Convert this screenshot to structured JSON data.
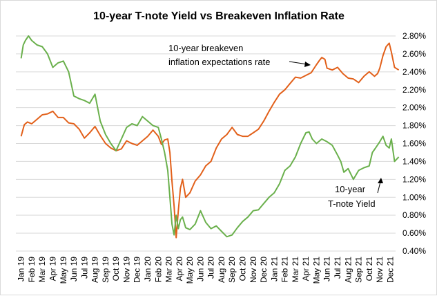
{
  "chart_data": {
    "type": "line",
    "title": "10-year T-note Yield vs Breakeven Inflation Rate",
    "xlabel": "",
    "ylabel": "",
    "ylim": [
      0.004,
      0.028
    ],
    "y_ticks": [
      "0.40%",
      "0.60%",
      "0.80%",
      "1.00%",
      "1.20%",
      "1.40%",
      "1.60%",
      "1.80%",
      "2.00%",
      "2.20%",
      "2.40%",
      "2.60%",
      "2.80%"
    ],
    "x_ticks": [
      "Jan 19",
      "Feb 19",
      "Mar 19",
      "Apr 19",
      "May 19",
      "Jun 19",
      "Jul 19",
      "Aug 19",
      "Sep 19",
      "Oct 19",
      "Nov 19",
      "Dec 19",
      "Jan 20",
      "Feb 20",
      "Mar 20",
      "Apr 20",
      "May 20",
      "Jun 20",
      "Jul 20",
      "Aug 20",
      "Sep 20",
      "Oct 20",
      "Nov 20",
      "Dec 20",
      "Jan 21",
      "Feb 21",
      "Mar 21",
      "Apr 21",
      "May 21",
      "Jun 21",
      "Jul 21",
      "Aug 21",
      "Sep 21",
      "Oct 21",
      "Nov 21",
      "Dec 21"
    ],
    "grid": true,
    "series": [
      {
        "label": "10-year breakeven inflation expectations rate",
        "color": "#e2601a",
        "x": [
          0,
          0.3,
          0.6,
          1,
          1.5,
          2,
          2.5,
          3,
          3.5,
          4,
          4.5,
          5,
          5.5,
          6,
          6.5,
          7,
          7.5,
          8,
          8.5,
          9,
          9.5,
          10,
          10.5,
          11,
          11.5,
          12,
          12.5,
          13,
          13.3,
          13.6,
          13.9,
          14.1,
          14.3,
          14.5,
          14.7,
          14.9,
          15.1,
          15.3,
          15.6,
          16,
          16.5,
          17,
          17.5,
          18,
          18.5,
          19,
          19.5,
          20,
          20.5,
          21,
          21.5,
          22,
          22.5,
          23,
          23.5,
          24,
          24.5,
          25,
          25.5,
          26,
          26.5,
          27,
          27.5,
          28,
          28.3,
          28.5,
          28.8,
          29,
          29.5,
          30,
          30.5,
          31,
          31.5,
          32,
          32.5,
          33,
          33.5,
          33.8,
          34,
          34.3,
          34.6,
          34.9,
          35.1,
          35.4,
          35.8
        ],
        "y": [
          0.0168,
          0.0181,
          0.0184,
          0.0182,
          0.0187,
          0.0192,
          0.0193,
          0.0196,
          0.0189,
          0.0189,
          0.0183,
          0.0182,
          0.0176,
          0.0166,
          0.0172,
          0.0179,
          0.0169,
          0.016,
          0.0155,
          0.0152,
          0.0154,
          0.0163,
          0.016,
          0.0158,
          0.0163,
          0.0168,
          0.0175,
          0.0168,
          0.0159,
          0.0164,
          0.0165,
          0.015,
          0.0118,
          0.009,
          0.0055,
          0.0085,
          0.011,
          0.012,
          0.01,
          0.0105,
          0.0118,
          0.0125,
          0.0135,
          0.014,
          0.0155,
          0.0165,
          0.017,
          0.0178,
          0.017,
          0.0168,
          0.0168,
          0.0172,
          0.0176,
          0.0185,
          0.0196,
          0.0206,
          0.0215,
          0.022,
          0.0227,
          0.0234,
          0.0233,
          0.0236,
          0.0239,
          0.0248,
          0.0253,
          0.0256,
          0.0254,
          0.0244,
          0.0242,
          0.0245,
          0.0238,
          0.0233,
          0.0232,
          0.0228,
          0.0235,
          0.024,
          0.0235,
          0.0238,
          0.0244,
          0.0258,
          0.0268,
          0.0272,
          0.0262,
          0.0245,
          0.0242
        ]
      },
      {
        "label": "10-year T-note Yield",
        "color": "#6ab04c",
        "x": [
          0,
          0.2,
          0.4,
          0.7,
          1,
          1.5,
          2,
          2.5,
          3,
          3.5,
          4,
          4.5,
          5,
          5.5,
          6,
          6.5,
          7,
          7.5,
          8,
          8.5,
          9,
          9.5,
          10,
          10.5,
          11,
          11.5,
          12,
          12.5,
          13,
          13.3,
          13.6,
          13.9,
          14.1,
          14.3,
          14.5,
          14.7,
          14.9,
          15.1,
          15.3,
          15.6,
          16,
          16.5,
          17,
          17.5,
          18,
          18.5,
          19,
          19.5,
          20,
          20.5,
          21,
          21.5,
          22,
          22.5,
          23,
          23.5,
          24,
          24.5,
          25,
          25.5,
          26,
          26.5,
          27,
          27.3,
          27.6,
          28,
          28.5,
          29,
          29.5,
          30,
          30.3,
          30.6,
          31,
          31.5,
          32,
          32.5,
          33,
          33.3,
          33.6,
          34,
          34.3,
          34.6,
          34.9,
          35.1,
          35.4,
          35.8
        ],
        "y": [
          0.0255,
          0.027,
          0.0275,
          0.028,
          0.0275,
          0.027,
          0.0268,
          0.026,
          0.0245,
          0.025,
          0.0252,
          0.024,
          0.0213,
          0.021,
          0.0208,
          0.0205,
          0.0215,
          0.0185,
          0.017,
          0.016,
          0.0152,
          0.0165,
          0.0178,
          0.0182,
          0.018,
          0.019,
          0.0185,
          0.018,
          0.0178,
          0.0165,
          0.015,
          0.013,
          0.01,
          0.007,
          0.0058,
          0.008,
          0.0065,
          0.0075,
          0.0078,
          0.0066,
          0.0064,
          0.007,
          0.0085,
          0.0072,
          0.0065,
          0.0068,
          0.0062,
          0.0056,
          0.0058,
          0.0066,
          0.0073,
          0.0078,
          0.0085,
          0.0086,
          0.0093,
          0.01,
          0.0105,
          0.0115,
          0.013,
          0.0135,
          0.0145,
          0.016,
          0.0172,
          0.0173,
          0.0165,
          0.016,
          0.0165,
          0.0162,
          0.0158,
          0.0147,
          0.014,
          0.0128,
          0.0132,
          0.012,
          0.013,
          0.0133,
          0.0135,
          0.015,
          0.0155,
          0.0162,
          0.0168,
          0.0158,
          0.0155,
          0.0165,
          0.014,
          0.0145
        ]
      }
    ],
    "annotations": {
      "breakeven_line1": "10-year breakeven",
      "breakeven_line2": "inflation expectations rate",
      "tnote_line1": "10-year",
      "tnote_line2": "T-note Yield"
    }
  }
}
